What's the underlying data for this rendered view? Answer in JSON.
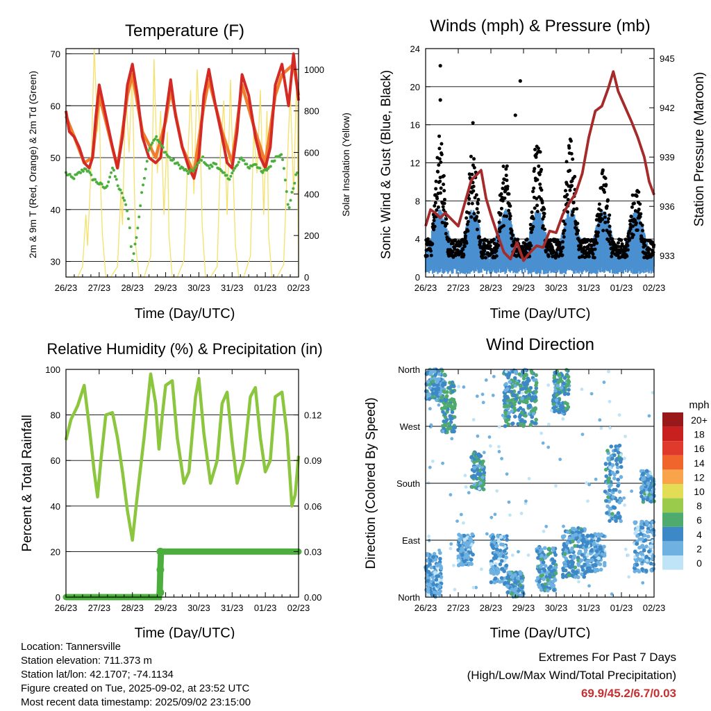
{
  "panels": {
    "temperature": {
      "title": "Temperature (F)",
      "xlabel": "Time (Day/UTC)",
      "ylabel_left": "2m & 9m T (Red, Orange) & 2m Td (Green)",
      "ylabel_right": "Solar Insolation (Yellow)"
    },
    "winds": {
      "title": "Winds (mph) & Pressure (mb)",
      "xlabel": "Time (Day/UTC)",
      "ylabel_left": "Sonic Wind & Gust (Blue, Black)",
      "ylabel_right": "Station Pressure (Maroon)"
    },
    "humidity": {
      "title": "Relative Humidity (%) & Precipitation (in)",
      "xlabel": "Time (Day/UTC)",
      "ylabel_left": "Percent & Total Rainfall"
    },
    "direction": {
      "title": "Wind Direction",
      "xlabel": "Time (Day/UTC)",
      "ylabel_left": "Direction (Colored By Speed)",
      "legend_title": "mph"
    }
  },
  "info": {
    "location": "Location: Tannersville",
    "elevation": "Station elevation: 711.373 m",
    "latlon": "Station lat/lon: 42.1707; -74.1134",
    "created": "Figure created on Tue, 2025-09-02, at 23:52 UTC",
    "latest": "Most recent data timestamp: 2025/09/02 23:15:00"
  },
  "extremes": {
    "line1": "Extremes For Past 7 Days",
    "line2": "(High/Low/Max Wind/Total Precipitation)",
    "values": "69.9/45.2/6.7/0.03"
  },
  "colors": {
    "temp_2m": "#d42a26",
    "temp_9m": "#f07d2e",
    "dewpoint": "#4caf3d",
    "insolation": "#f5e06a",
    "wind_sonic": "#4a90d0",
    "gust": "#000000",
    "pressure": "#a52a2a",
    "humidity": "#8cc63f",
    "rain": "#4caf3d"
  },
  "chart_data": [
    {
      "id": "temperature",
      "type": "line",
      "title": "Temperature (F)",
      "xlabel": "Time (Day/UTC)",
      "x_ticks": [
        "26/23",
        "27/23",
        "28/23",
        "29/23",
        "30/23",
        "31/23",
        "01/23",
        "02/23"
      ],
      "xlim_days": [
        0,
        7
      ],
      "ylim_left": [
        27,
        71
      ],
      "yticks_left": [
        30,
        40,
        50,
        60,
        70
      ],
      "ylim_right": [
        0,
        1100
      ],
      "yticks_right": [
        0,
        200,
        400,
        600,
        800,
        1000
      ],
      "gridlines_left": [
        30,
        40,
        50,
        60,
        70
      ],
      "series": [
        {
          "name": "2m T",
          "axis": "left",
          "color": "#d42a26",
          "x": [
            0,
            0.1,
            0.25,
            0.4,
            0.55,
            0.7,
            0.8,
            0.9,
            1.0,
            1.2,
            1.4,
            1.55,
            1.7,
            1.85,
            2.0,
            2.15,
            2.3,
            2.5,
            2.7,
            2.85,
            3.0,
            3.15,
            3.3,
            3.5,
            3.7,
            3.85,
            4.0,
            4.15,
            4.3,
            4.5,
            4.7,
            4.85,
            5.0,
            5.15,
            5.3,
            5.5,
            5.7,
            5.85,
            6.0,
            6.15,
            6.3,
            6.5,
            6.7,
            6.85,
            7.0
          ],
          "y": [
            59,
            55,
            54,
            52,
            49,
            48,
            50,
            58,
            64,
            58,
            52,
            48,
            54,
            64,
            68,
            62,
            54,
            50,
            49,
            50,
            58,
            65,
            58,
            52,
            48,
            46,
            50,
            62,
            67,
            60,
            54,
            49,
            48,
            55,
            66,
            62,
            54,
            50,
            48,
            52,
            64,
            68,
            60,
            70,
            61
          ]
        },
        {
          "name": "9m T",
          "axis": "left",
          "color": "#f07d2e",
          "x": [
            0,
            0.25,
            0.55,
            0.8,
            1.0,
            1.2,
            1.55,
            1.85,
            2.0,
            2.3,
            2.7,
            3.0,
            3.15,
            3.5,
            3.85,
            4.15,
            4.3,
            4.7,
            5.0,
            5.3,
            5.7,
            6.0,
            6.3,
            6.5,
            6.85,
            7.0
          ],
          "y": [
            58,
            54,
            49,
            50,
            62,
            57,
            48,
            62,
            66,
            55,
            50,
            57,
            63,
            52,
            47,
            60,
            65,
            55,
            49,
            64,
            55,
            49,
            62,
            66,
            68,
            62
          ]
        },
        {
          "name": "2m Td",
          "axis": "left",
          "color": "#4caf3d",
          "x": [
            0,
            0.2,
            0.4,
            0.6,
            0.8,
            1.0,
            1.2,
            1.4,
            1.6,
            1.75,
            1.9,
            2.0,
            2.15,
            2.3,
            2.5,
            2.7,
            2.9,
            3.1,
            3.3,
            3.5,
            3.7,
            3.9,
            4.1,
            4.3,
            4.5,
            4.7,
            4.9,
            5.1,
            5.3,
            5.5,
            5.7,
            5.9,
            6.1,
            6.3,
            6.5,
            6.7,
            6.9,
            7.0
          ],
          "y": [
            47,
            46,
            47,
            48,
            46,
            45,
            44,
            48,
            44,
            42,
            38,
            30,
            36,
            44,
            52,
            54,
            52,
            50,
            49,
            48,
            47,
            48,
            50,
            48,
            49,
            47,
            46,
            48,
            50,
            48,
            49,
            47,
            48,
            50,
            51,
            40,
            46,
            48
          ]
        },
        {
          "name": "Solar Insolation",
          "axis": "right",
          "color": "#f5e06a",
          "x": [
            0,
            0.35,
            0.5,
            0.6,
            0.65,
            0.75,
            0.85,
            0.95,
            1.0,
            1.05,
            1.1,
            1.2,
            1.35,
            1.55,
            1.65,
            1.7,
            1.8,
            1.9,
            2.0,
            2.05,
            2.1,
            2.2,
            2.35,
            2.55,
            2.65,
            2.75,
            2.85,
            2.95,
            3.05,
            3.1,
            3.2,
            3.35,
            3.55,
            3.65,
            3.75,
            3.85,
            3.95,
            4.05,
            4.1,
            4.2,
            4.35,
            4.55,
            4.65,
            4.75,
            4.85,
            4.95,
            5.05,
            5.1,
            5.2,
            5.35,
            5.55,
            5.65,
            5.75,
            5.85,
            5.95,
            6.05,
            6.1,
            6.2,
            6.35,
            6.55,
            6.65,
            6.75,
            6.85,
            6.95,
            7.0
          ],
          "y": [
            0,
            0,
            50,
            300,
            150,
            500,
            1100,
            700,
            900,
            400,
            200,
            0,
            0,
            50,
            400,
            250,
            900,
            600,
            1000,
            500,
            150,
            0,
            0,
            100,
            1050,
            500,
            800,
            300,
            700,
            200,
            0,
            0,
            80,
            500,
            900,
            400,
            1000,
            600,
            250,
            0,
            0,
            50,
            600,
            850,
            300,
            950,
            400,
            150,
            0,
            0,
            100,
            700,
            500,
            900,
            300,
            800,
            200,
            0,
            0,
            60,
            500,
            900,
            400,
            1000,
            0
          ]
        }
      ]
    },
    {
      "id": "winds",
      "type": "scatter",
      "title": "Winds (mph) & Pressure (mb)",
      "xlabel": "Time (Day/UTC)",
      "x_ticks": [
        "26/23",
        "27/23",
        "28/23",
        "29/23",
        "30/23",
        "31/23",
        "01/23",
        "02/23"
      ],
      "xlim_days": [
        0,
        7
      ],
      "ylim_left": [
        0,
        24
      ],
      "yticks_left": [
        0,
        4,
        8,
        12,
        16,
        20,
        24
      ],
      "ylim_right": [
        931.7,
        945.6
      ],
      "yticks_right": [
        933,
        936,
        939,
        942,
        945
      ],
      "series": [
        {
          "name": "Station Pressure",
          "axis": "right",
          "type": "line",
          "color": "#a52a2a",
          "x": [
            0,
            0.15,
            0.3,
            0.45,
            0.6,
            0.8,
            1.0,
            1.2,
            1.4,
            1.55,
            1.7,
            1.85,
            2.0,
            2.2,
            2.4,
            2.6,
            2.8,
            3.0,
            3.2,
            3.4,
            3.6,
            3.8,
            4.0,
            4.2,
            4.4,
            4.6,
            4.8,
            5.0,
            5.2,
            5.4,
            5.6,
            5.75,
            5.9,
            6.1,
            6.3,
            6.5,
            6.7,
            6.85,
            7.0
          ],
          "y": [
            934.8,
            935.8,
            935.6,
            935.3,
            935.6,
            935.2,
            934.8,
            936.2,
            937.6,
            937.9,
            938.2,
            936.5,
            935.5,
            934.3,
            933.2,
            932.8,
            933.8,
            932.7,
            933.2,
            933.6,
            933.5,
            934.5,
            934.4,
            935.5,
            936.2,
            936.8,
            938.0,
            940.2,
            941.8,
            942.1,
            943.2,
            944.2,
            943.0,
            942.1,
            941.2,
            940.2,
            939.0,
            937.5,
            936.7
          ]
        }
      ],
      "sonic_wind_bands": {
        "x_days": [
          0,
          7
        ],
        "typical_range": [
          0,
          6
        ]
      },
      "gust_peaks": [
        {
          "x": 0.45,
          "y": 22.2
        },
        {
          "x": 0.45,
          "y": 18.6
        },
        {
          "x": 1.45,
          "y": 16.2
        },
        {
          "x": 2.9,
          "y": 20.6
        },
        {
          "x": 2.75,
          "y": 17.0
        }
      ]
    },
    {
      "id": "humidity",
      "type": "line",
      "title": "Relative Humidity (%) & Precipitation (in)",
      "xlabel": "Time (Day/UTC)",
      "x_ticks": [
        "26/23",
        "27/23",
        "28/23",
        "29/23",
        "30/23",
        "31/23",
        "01/23",
        "02/23"
      ],
      "xlim_days": [
        0,
        7
      ],
      "ylim_left": [
        0,
        100
      ],
      "yticks_left": [
        0,
        20,
        40,
        60,
        80,
        100
      ],
      "ylim_right": [
        0,
        0.15
      ],
      "yticks_right": [
        "0.00",
        "0.03",
        "0.06",
        "0.09",
        "0.12"
      ],
      "series": [
        {
          "name": "Relative Humidity",
          "axis": "left",
          "color": "#8cc63f",
          "x": [
            0,
            0.15,
            0.35,
            0.55,
            0.7,
            0.85,
            0.95,
            1.05,
            1.2,
            1.4,
            1.55,
            1.7,
            1.85,
            2.0,
            2.15,
            2.35,
            2.55,
            2.7,
            2.8,
            2.9,
            3.0,
            3.2,
            3.35,
            3.55,
            3.7,
            3.9,
            4.0,
            4.15,
            4.35,
            4.55,
            4.7,
            4.85,
            5.0,
            5.15,
            5.35,
            5.55,
            5.7,
            5.85,
            6.0,
            6.15,
            6.3,
            6.5,
            6.65,
            6.8,
            6.9,
            7.0
          ],
          "y": [
            69,
            78,
            84,
            93,
            75,
            55,
            44,
            60,
            80,
            81,
            70,
            55,
            38,
            25,
            45,
            70,
            98,
            85,
            65,
            80,
            93,
            95,
            70,
            50,
            55,
            88,
            96,
            72,
            50,
            60,
            85,
            90,
            68,
            50,
            60,
            88,
            92,
            70,
            55,
            60,
            88,
            90,
            72,
            40,
            45,
            62
          ]
        },
        {
          "name": "Total Rainfall",
          "axis": "right",
          "color": "#4caf3d",
          "x": [
            0,
            2.8,
            2.82,
            2.84,
            2.86,
            7.0
          ],
          "y": [
            0,
            0,
            0.003,
            0.018,
            0.03,
            0.03
          ]
        }
      ]
    },
    {
      "id": "direction",
      "type": "scatter",
      "title": "Wind Direction",
      "xlabel": "Time (Day/UTC)",
      "ylabel": "Direction (Colored By Speed)",
      "x_ticks": [
        "26/23",
        "27/23",
        "28/23",
        "29/23",
        "30/23",
        "31/23",
        "01/23",
        "02/23"
      ],
      "xlim_days": [
        0,
        7
      ],
      "y_ticks": [
        "North",
        "East",
        "South",
        "West",
        "North"
      ],
      "ylim_deg": [
        0,
        360
      ],
      "legend": {
        "title": "mph",
        "levels": [
          "20+",
          "18",
          "16",
          "14",
          "12",
          "10",
          "8",
          "6",
          "4",
          "2",
          "0"
        ],
        "colors": [
          "#99191a",
          "#c8201f",
          "#df3a2b",
          "#f0652c",
          "#f9a44a",
          "#e3dc55",
          "#9acb4b",
          "#4faa6e",
          "#3d88c6",
          "#6fb2e1",
          "#bfe3f7"
        ]
      },
      "clusters": [
        {
          "x_range": [
            0.0,
            0.5
          ],
          "deg_range": [
            0,
            70
          ],
          "speed": 2
        },
        {
          "x_range": [
            0.0,
            0.6
          ],
          "deg_range": [
            310,
            360
          ],
          "speed": 3
        },
        {
          "x_range": [
            0.5,
            0.9
          ],
          "deg_range": [
            260,
            340
          ],
          "speed": 5
        },
        {
          "x_range": [
            1.0,
            1.45
          ],
          "deg_range": [
            50,
            100
          ],
          "speed": 2
        },
        {
          "x_range": [
            1.4,
            1.8
          ],
          "deg_range": [
            170,
            230
          ],
          "speed": 4
        },
        {
          "x_range": [
            2.0,
            2.5
          ],
          "deg_range": [
            20,
            100
          ],
          "speed": 2
        },
        {
          "x_range": [
            2.4,
            3.4
          ],
          "deg_range": [
            270,
            360
          ],
          "speed": 4
        },
        {
          "x_range": [
            2.5,
            3.0
          ],
          "deg_range": [
            0,
            40
          ],
          "speed": 3
        },
        {
          "x_range": [
            3.4,
            4.0
          ],
          "deg_range": [
            10,
            80
          ],
          "speed": 3
        },
        {
          "x_range": [
            3.9,
            4.4
          ],
          "deg_range": [
            290,
            360
          ],
          "speed": 4
        },
        {
          "x_range": [
            4.2,
            4.9
          ],
          "deg_range": [
            30,
            110
          ],
          "speed": 3
        },
        {
          "x_range": [
            4.8,
            5.5
          ],
          "deg_range": [
            40,
            100
          ],
          "speed": 2
        },
        {
          "x_range": [
            5.5,
            6.0
          ],
          "deg_range": [
            120,
            240
          ],
          "speed": 3
        },
        {
          "x_range": [
            6.6,
            7.0
          ],
          "deg_range": [
            150,
            200
          ],
          "speed": 3
        },
        {
          "x_range": [
            6.4,
            7.0
          ],
          "deg_range": [
            40,
            120
          ],
          "speed": 2
        }
      ]
    }
  ]
}
